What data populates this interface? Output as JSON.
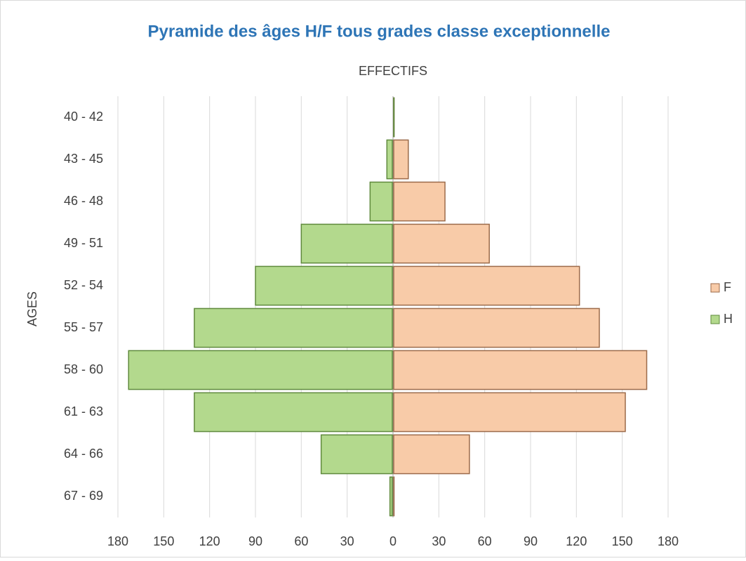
{
  "chart_data": {
    "type": "pyramid",
    "title": "Pyramide des âges H/F tous grades classe exceptionnelle",
    "x_label": "EFFECTIFS",
    "y_label": "AGES",
    "categories": [
      "40 - 42",
      "43 - 45",
      "46 - 48",
      "49 - 51",
      "52 - 54",
      "55 - 57",
      "58 - 60",
      "61 - 63",
      "64 - 66",
      "67 - 69"
    ],
    "series": [
      {
        "name": "F",
        "color": "#f8cba8",
        "values": [
          0,
          10,
          34,
          63,
          122,
          135,
          166,
          152,
          50,
          0
        ]
      },
      {
        "name": "H",
        "color": "#b3d98d",
        "values": [
          0,
          -4,
          -15,
          -60,
          -90,
          -130,
          -173,
          -130,
          -47,
          -2
        ]
      }
    ],
    "xlim": [
      -180,
      180
    ],
    "xticks": [
      {
        "value": -180,
        "label": "180"
      },
      {
        "value": -150,
        "label": "150"
      },
      {
        "value": -120,
        "label": "120"
      },
      {
        "value": -90,
        "label": "90"
      },
      {
        "value": -60,
        "label": "60"
      },
      {
        "value": -30,
        "label": "30"
      },
      0,
      30,
      60,
      90,
      120,
      150,
      180
    ],
    "grid": true,
    "legend": "right"
  }
}
